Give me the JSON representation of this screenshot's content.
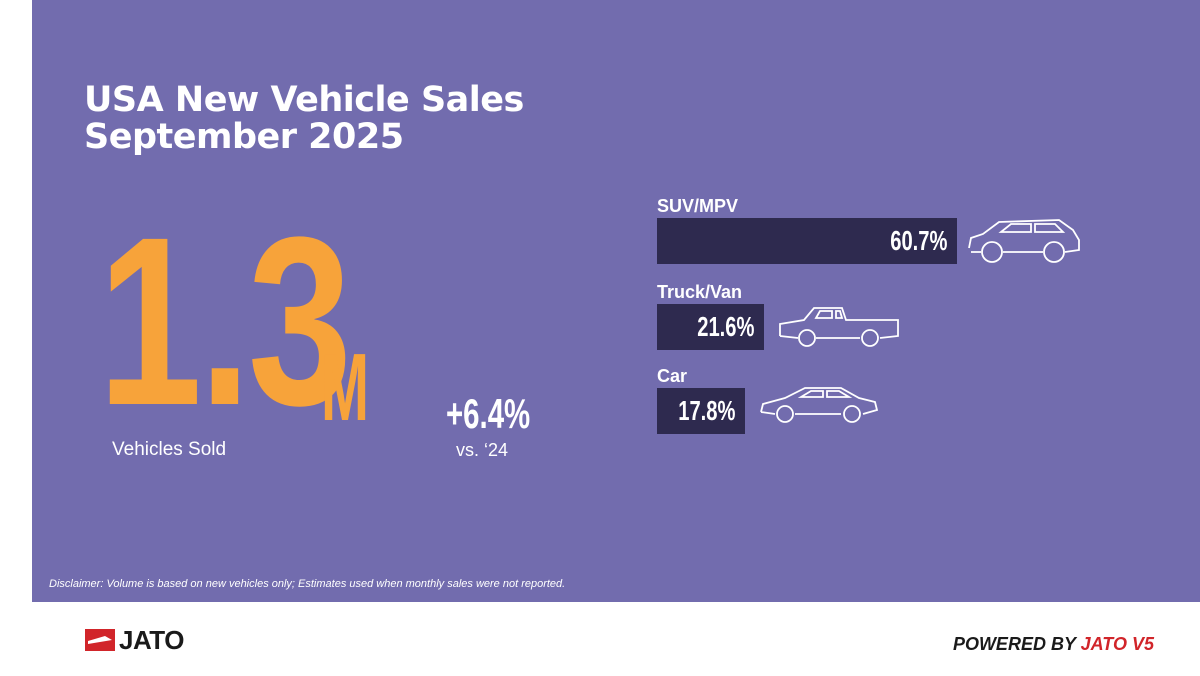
{
  "title": {
    "line1": "USA New Vehicle Sales",
    "line2": "September 2025"
  },
  "kpi": {
    "value": "1.3",
    "unit": "M",
    "label": "Vehicles Sold",
    "change": "+6.4%",
    "change_label": "vs. ‘24"
  },
  "chart_data": {
    "type": "bar",
    "orientation": "horizontal",
    "categories": [
      "SUV/MPV",
      "Truck/Van",
      "Car"
    ],
    "values": [
      60.7,
      21.6,
      17.8
    ],
    "value_labels": [
      "60.7%",
      "21.6%",
      "17.8%"
    ],
    "unit": "%",
    "icons": [
      "suv-icon",
      "pickup-truck-icon",
      "sedan-icon"
    ]
  },
  "disclaimer": "Disclaimer: Volume is based on new vehicles only; Estimates used when monthly sales were not reported.",
  "footer": {
    "logo": "JATO",
    "powered_prefix": "POWERED BY ",
    "powered_brand": "JATO V5"
  },
  "colors": {
    "background": "#726cae",
    "highlight": "#f7a33a",
    "bar": "#2e2a4f",
    "brand_red": "#d1252a"
  }
}
